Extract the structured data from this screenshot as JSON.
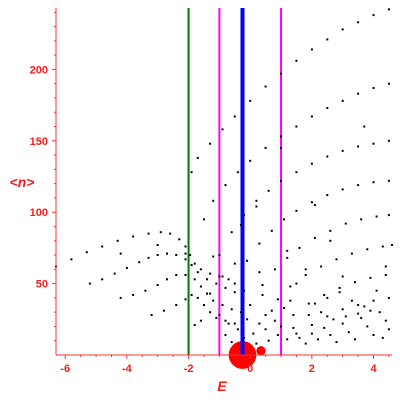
{
  "chart_data": {
    "type": "scatter",
    "xlabel": "E",
    "ylabel": "<n>",
    "xlim": [
      -6.3,
      4.6
    ],
    "ylim": [
      0,
      243
    ],
    "xticks": [
      -6,
      -4,
      -2,
      0,
      2,
      4
    ],
    "yticks": [
      50,
      100,
      150,
      200
    ],
    "xtick_labels": [
      "-6",
      "-4",
      "-2",
      "0",
      "2",
      "4"
    ],
    "ytick_labels": [
      "50",
      "100",
      "150",
      "200"
    ],
    "grid": false,
    "axis_color": "#ff1a1a",
    "point_color": "#000000",
    "vertical_lines": [
      {
        "x": -2.0,
        "color": "#007700",
        "width": 2
      },
      {
        "x": -1.0,
        "color": "#ff00ff",
        "width": 2
      },
      {
        "x": 1.0,
        "color": "#ff00ff",
        "width": 2
      },
      {
        "x": -0.25,
        "color": "#0000ff",
        "width": 4
      }
    ],
    "blobs": [
      {
        "x": -0.25,
        "y": 0,
        "r": 0.45,
        "color": "#ff0000"
      },
      {
        "x": 0.35,
        "y": 3,
        "r": 0.15,
        "color": "#ff0000"
      }
    ],
    "series": [
      {
        "values": [
          [
            -6.3,
            62
          ],
          [
            -5.8,
            67
          ],
          [
            -5.3,
            72
          ],
          [
            -4.8,
            76
          ],
          [
            -4.3,
            80
          ],
          [
            -3.8,
            83
          ],
          [
            -3.3,
            85
          ],
          [
            -2.9,
            86
          ],
          [
            -2.6,
            85
          ],
          [
            -2.3,
            81
          ],
          [
            -2.1,
            76
          ],
          [
            -1.95,
            70
          ],
          [
            -1.8,
            64
          ],
          [
            -1.6,
            60
          ],
          [
            -1.3,
            57
          ],
          [
            -1.0,
            55
          ],
          [
            -0.7,
            53
          ]
        ]
      },
      {
        "values": [
          [
            -5.2,
            50
          ],
          [
            -4.8,
            53
          ],
          [
            -4.4,
            57
          ],
          [
            -4.0,
            61
          ],
          [
            -3.6,
            65
          ],
          [
            -3.3,
            68
          ],
          [
            -3.0,
            70
          ],
          [
            -2.7,
            71
          ],
          [
            -2.4,
            70
          ],
          [
            -2.1,
            67
          ],
          [
            -1.9,
            63
          ],
          [
            -1.7,
            58
          ],
          [
            -1.4,
            53
          ],
          [
            -1.1,
            50
          ],
          [
            -0.8,
            47
          ],
          [
            -0.5,
            44
          ]
        ]
      },
      {
        "values": [
          [
            -4.2,
            40
          ],
          [
            -3.8,
            42
          ],
          [
            -3.4,
            45
          ],
          [
            -3.0,
            49
          ],
          [
            -2.7,
            53
          ],
          [
            -2.4,
            56
          ],
          [
            -2.1,
            56
          ],
          [
            -1.8,
            53
          ],
          [
            -1.6,
            48
          ],
          [
            -1.4,
            43
          ],
          [
            -1.2,
            38
          ],
          [
            -0.9,
            35
          ],
          [
            -0.6,
            32
          ],
          [
            -0.3,
            30
          ]
        ]
      },
      {
        "values": [
          [
            -3.2,
            28
          ],
          [
            -2.8,
            31
          ],
          [
            -2.4,
            35
          ],
          [
            -2.1,
            39
          ],
          [
            -1.9,
            42
          ],
          [
            -1.7,
            40
          ],
          [
            -1.5,
            35
          ],
          [
            -1.3,
            30
          ],
          [
            -1.1,
            26
          ],
          [
            -0.8,
            24
          ],
          [
            -0.5,
            22
          ]
        ]
      },
      {
        "values": [
          [
            -1.9,
            128
          ],
          [
            -1.7,
            138
          ],
          [
            -1.3,
            148
          ],
          [
            -0.9,
            158
          ],
          [
            -0.5,
            167
          ],
          [
            0.0,
            178
          ],
          [
            0.5,
            188
          ],
          [
            1.0,
            197
          ],
          [
            1.5,
            206
          ],
          [
            2.0,
            214
          ],
          [
            2.5,
            221
          ],
          [
            3.0,
            228
          ],
          [
            3.5,
            233
          ],
          [
            4.0,
            238
          ],
          [
            4.5,
            242
          ]
        ]
      },
      {
        "values": [
          [
            -1.5,
            95
          ],
          [
            -1.2,
            108
          ],
          [
            -0.8,
            119
          ],
          [
            -0.4,
            128
          ],
          [
            0.0,
            136
          ],
          [
            0.5,
            145
          ],
          [
            1.0,
            153
          ],
          [
            1.5,
            160
          ],
          [
            2.0,
            167
          ],
          [
            2.5,
            173
          ],
          [
            3.0,
            178
          ],
          [
            3.5,
            183
          ],
          [
            4.0,
            187
          ],
          [
            4.5,
            190
          ]
        ]
      },
      {
        "values": [
          [
            -1.0,
            70
          ],
          [
            -0.6,
            86
          ],
          [
            -0.2,
            98
          ],
          [
            0.2,
            108
          ],
          [
            0.6,
            115
          ],
          [
            1.0,
            122
          ],
          [
            1.5,
            128
          ],
          [
            2.0,
            134
          ],
          [
            2.5,
            139
          ],
          [
            3.0,
            143
          ],
          [
            3.5,
            146
          ],
          [
            4.0,
            148
          ],
          [
            4.5,
            150
          ]
        ]
      },
      {
        "values": [
          [
            -0.5,
            50
          ],
          [
            -0.1,
            66
          ],
          [
            0.3,
            78
          ],
          [
            0.7,
            87
          ],
          [
            1.1,
            95
          ],
          [
            1.5,
            101
          ],
          [
            2.0,
            107
          ],
          [
            2.5,
            112
          ],
          [
            3.0,
            116
          ],
          [
            3.5,
            119
          ],
          [
            4.0,
            121
          ],
          [
            4.5,
            122
          ]
        ]
      },
      {
        "values": [
          [
            0.0,
            35
          ],
          [
            0.4,
            49
          ],
          [
            0.8,
            60
          ],
          [
            1.2,
            68
          ],
          [
            1.6,
            75
          ],
          [
            2.1,
            82
          ],
          [
            2.6,
            87
          ],
          [
            3.1,
            92
          ],
          [
            3.6,
            95
          ],
          [
            4.1,
            97
          ],
          [
            4.5,
            98
          ]
        ]
      },
      {
        "values": [
          [
            0.5,
            28
          ],
          [
            0.9,
            39
          ],
          [
            1.3,
            48
          ],
          [
            1.8,
            56
          ],
          [
            2.3,
            62
          ],
          [
            2.8,
            67
          ],
          [
            3.3,
            71
          ],
          [
            3.8,
            74
          ],
          [
            4.3,
            76
          ],
          [
            4.6,
            77
          ]
        ]
      },
      {
        "values": [
          [
            1.0,
            20
          ],
          [
            1.4,
            28
          ],
          [
            1.9,
            36
          ],
          [
            2.4,
            42
          ],
          [
            2.9,
            47
          ],
          [
            3.4,
            51
          ],
          [
            3.9,
            54
          ],
          [
            4.4,
            56
          ]
        ]
      },
      {
        "values": [
          [
            1.5,
            15
          ],
          [
            2.0,
            21
          ],
          [
            2.5,
            27
          ],
          [
            3.0,
            32
          ],
          [
            3.5,
            35
          ],
          [
            4.0,
            38
          ],
          [
            4.5,
            40
          ]
        ]
      },
      {
        "values": [
          [
            -3.0,
            77
          ],
          [
            -2.1,
            71
          ],
          [
            -4.2,
            71
          ],
          [
            -1.2,
            69
          ],
          [
            -0.5,
            64
          ],
          [
            -0.3,
            91
          ],
          [
            1.0,
            145
          ],
          [
            0.2,
            104
          ],
          [
            -0.9,
            55
          ],
          [
            -1.3,
            43
          ],
          [
            -1.0,
            28
          ],
          [
            -0.7,
            22
          ],
          [
            -0.4,
            18
          ],
          [
            -0.8,
            14
          ],
          [
            -0.2,
            12
          ],
          [
            0.1,
            15
          ],
          [
            -1.6,
            24
          ],
          [
            -1.8,
            21
          ],
          [
            -0.6,
            9
          ],
          [
            -0.1,
            25
          ],
          [
            0.3,
            22
          ],
          [
            0.5,
            18
          ],
          [
            0.2,
            8
          ],
          [
            0.6,
            10
          ],
          [
            0.9,
            14
          ],
          [
            1.2,
            11
          ],
          [
            0.8,
            24
          ],
          [
            1.1,
            33
          ],
          [
            1.4,
            19
          ],
          [
            1.6,
            12
          ],
          [
            1.8,
            8
          ],
          [
            2.0,
            15
          ],
          [
            2.2,
            11
          ],
          [
            2.4,
            19
          ],
          [
            2.6,
            14
          ],
          [
            2.8,
            9
          ],
          [
            3.0,
            22
          ],
          [
            3.2,
            16
          ],
          [
            3.4,
            11
          ],
          [
            3.6,
            26
          ],
          [
            3.8,
            20
          ],
          [
            4.0,
            14
          ],
          [
            4.2,
            30
          ],
          [
            4.4,
            24
          ],
          [
            4.5,
            18
          ],
          [
            4.3,
            12
          ],
          [
            3.9,
            31
          ],
          [
            3.5,
            29
          ],
          [
            3.1,
            27
          ],
          [
            2.7,
            25
          ],
          [
            2.3,
            30
          ],
          [
            1.9,
            28
          ],
          [
            2.1,
            36
          ],
          [
            2.5,
            40
          ],
          [
            2.9,
            44
          ],
          [
            3.3,
            38
          ],
          [
            3.7,
            34
          ],
          [
            4.1,
            45
          ],
          [
            1.3,
            38
          ],
          [
            0.7,
            31
          ],
          [
            0.4,
            42
          ],
          [
            1.5,
            50
          ],
          [
            2.1,
            105
          ],
          [
            3.7,
            160
          ],
          [
            3.0,
            55
          ],
          [
            4.4,
            62
          ],
          [
            2.6,
            80
          ],
          [
            1.8,
            60
          ],
          [
            1.2,
            73
          ],
          [
            0.3,
            58
          ],
          [
            -0.2,
            45
          ]
        ]
      }
    ]
  }
}
